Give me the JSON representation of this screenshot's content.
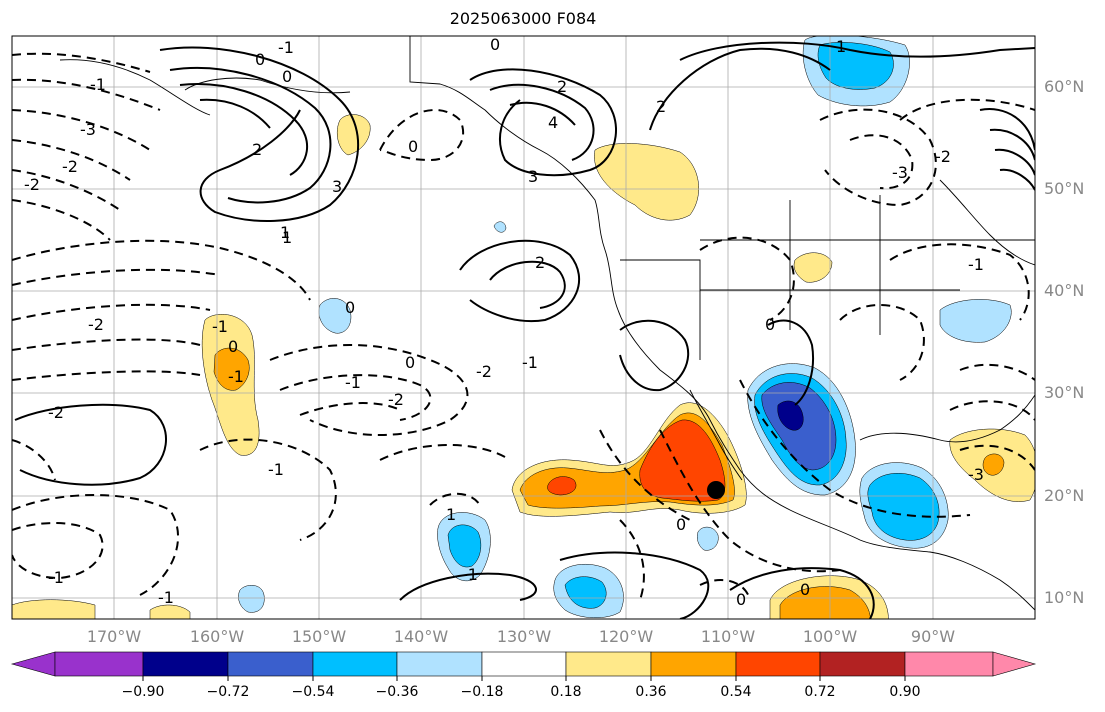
{
  "title": "2025063000 F084",
  "lat_labels": [
    "60°N",
    "50°N",
    "40°N",
    "30°N",
    "20°N",
    "10°N"
  ],
  "lon_labels": [
    "170°W",
    "160°W",
    "150°W",
    "140°W",
    "130°W",
    "120°W",
    "110°W",
    "100°W",
    "90°W"
  ],
  "contour_labels": [
    "-2",
    "-1",
    "0",
    "-3",
    "-2",
    "-1",
    "0",
    "2",
    "4",
    "3",
    "-3",
    "-2",
    "0",
    "-2",
    "-1",
    "0",
    "1",
    "2",
    "-1",
    "-1",
    "0",
    "-2",
    "-1",
    "0",
    "-1",
    "-2",
    "2",
    "0",
    "1",
    "2",
    "3",
    "-1",
    "1",
    "-1",
    "0",
    "-1",
    "0",
    "0",
    "0",
    "-2",
    "-3",
    "-1",
    "1"
  ],
  "colorbar": {
    "colors": [
      "#9932cc",
      "#00008b",
      "#3a5fcd",
      "#00bfff",
      "#b0e2ff",
      "#ffffff",
      "#ffe98a",
      "#ffa500",
      "#ff4500",
      "#b22222",
      "#ff88aa"
    ],
    "labels": [
      "−0.90",
      "−0.72",
      "−0.54",
      "−0.36",
      "−0.18",
      "0.18",
      "0.36",
      "0.54",
      "0.72",
      "0.90"
    ]
  },
  "legend_colors": {
    "strong_negative": "#00008b",
    "moderate_negative": "#3a5fcd",
    "negative": "#00bfff",
    "weak_negative": "#b0e2ff",
    "weak_positive": "#ffe98a",
    "positive": "#ffa500",
    "strong_positive": "#ff4500"
  },
  "marker": "black-dot"
}
